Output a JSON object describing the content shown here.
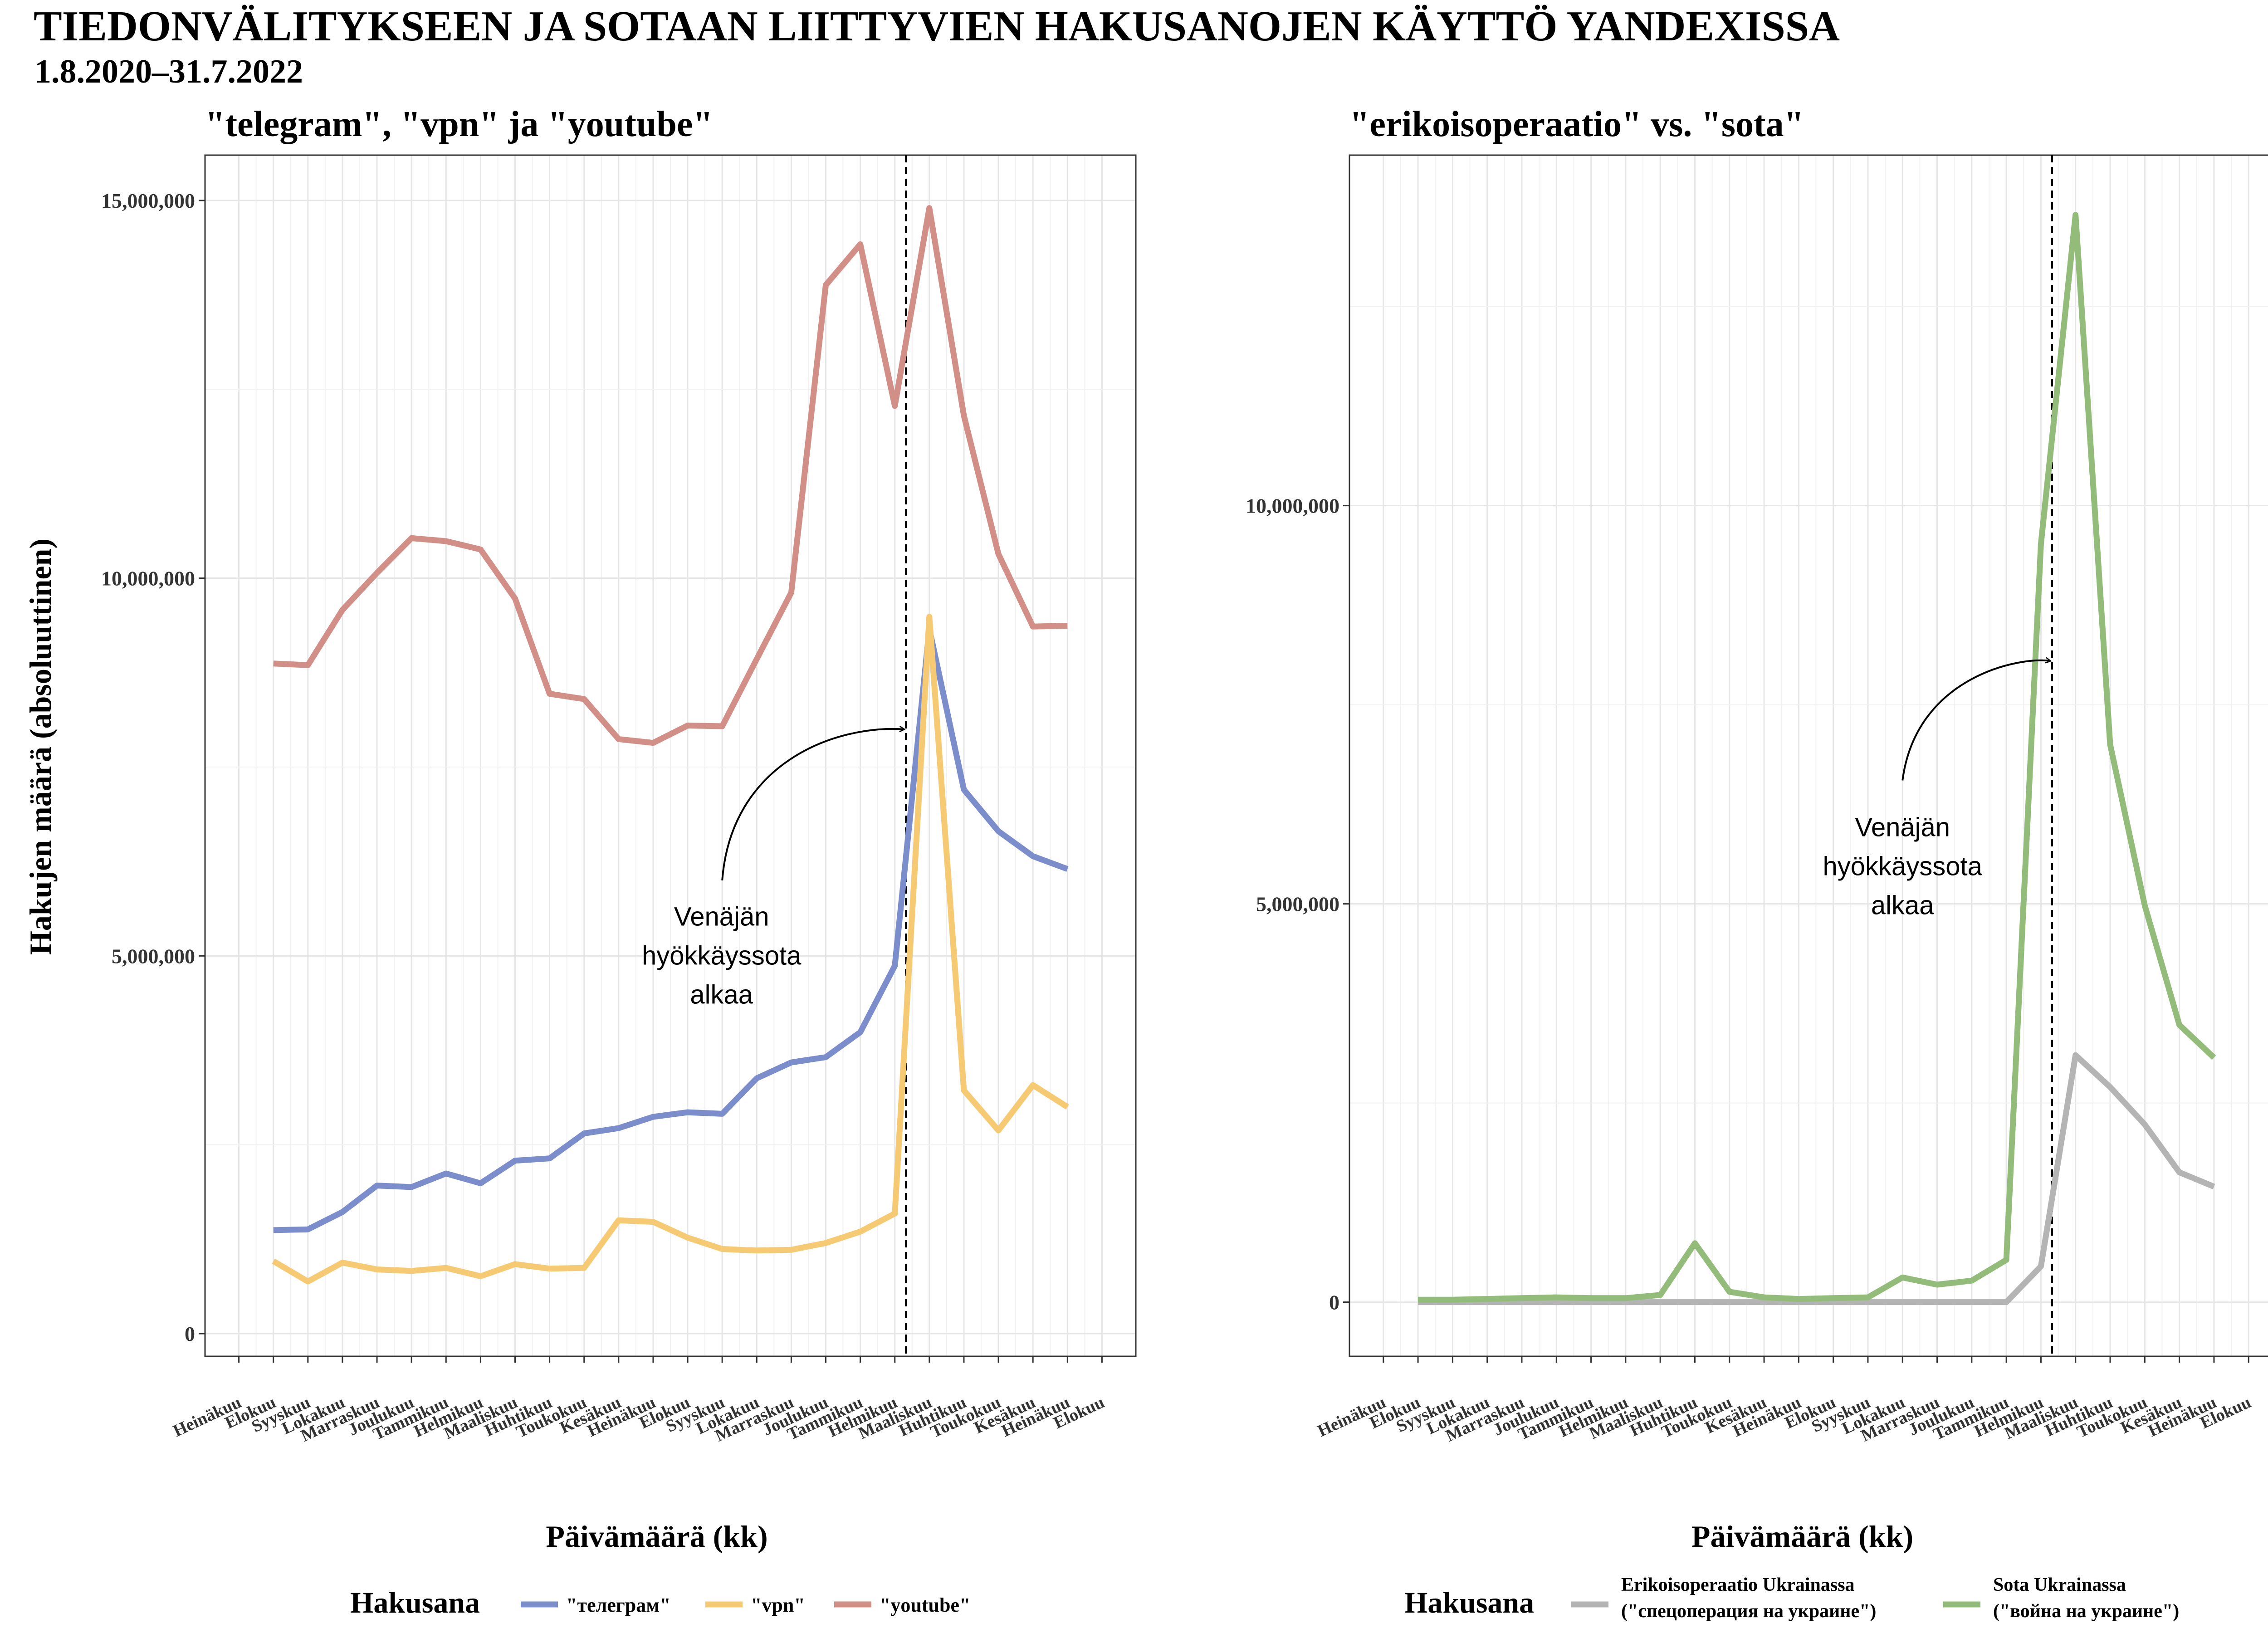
{
  "title": "TIEDONVÄLITYKSEEN JA SOTAAN LIITTYVIEN HAKUSANOJEN KÄYTTÖ YANDEXISSA",
  "subtitle": "1.8.2020–31.7.2022",
  "chart_data": [
    {
      "type": "line",
      "title": "\"telegram\", \"vpn\" ja \"youtube\"",
      "xlabel": "Päivämäärä (kk)",
      "ylabel": "Hakujen määrä (absoluuttinen)",
      "x_tick_labels": [
        "Heinäkuu",
        "Elokuu",
        "Syyskuu",
        "Lokakuu",
        "Marraskuu",
        "Joulukuu",
        "Tammikuu",
        "Helmikuu",
        "Maaliskuu",
        "Huhtikuu",
        "Toukokuu",
        "Kesäkuu",
        "Heinäkuu",
        "Elokuu",
        "Syyskuu",
        "Lokakuu",
        "Marraskuu",
        "Joulukuu",
        "Tammikuu",
        "Helmikuu",
        "Maaliskuu",
        "Huhtikuu",
        "Toukokuu",
        "Kesäkuu",
        "Heinäkuu",
        "Elokuu"
      ],
      "x": [
        "2020-08",
        "2020-09",
        "2020-10",
        "2020-11",
        "2020-12",
        "2021-01",
        "2021-02",
        "2021-03",
        "2021-04",
        "2021-05",
        "2021-06",
        "2021-07",
        "2021-08",
        "2021-09",
        "2021-10",
        "2021-11",
        "2021-12",
        "2022-01",
        "2022-02",
        "2022-03",
        "2022-04",
        "2022-05",
        "2022-06",
        "2022-07"
      ],
      "ylim": [
        -300000,
        15600000
      ],
      "y_ticks": [
        0,
        5000000,
        10000000,
        15000000
      ],
      "y_tick_labels": [
        "0",
        "5,000,000",
        "10,000,000",
        "15,000,000"
      ],
      "grid": true,
      "legend_title": "Hakusana",
      "legend_position": "bottom",
      "series": [
        {
          "name": "\"телеграм\"",
          "color": "#7b8ecb",
          "values": [
            1370000,
            1380000,
            1610000,
            1960000,
            1940000,
            2120000,
            1990000,
            2290000,
            2320000,
            2650000,
            2720000,
            2870000,
            2930000,
            2910000,
            3380000,
            3590000,
            3660000,
            3990000,
            4870000,
            9330000,
            7200000,
            6650000,
            6320000,
            6150000
          ]
        },
        {
          "name": "\"vpn\"",
          "color": "#f5ca72",
          "values": [
            960000,
            690000,
            940000,
            850000,
            830000,
            870000,
            760000,
            920000,
            860000,
            870000,
            1500000,
            1480000,
            1270000,
            1120000,
            1100000,
            1110000,
            1200000,
            1350000,
            1590000,
            9490000,
            3220000,
            2690000,
            3290000,
            3000000
          ]
        },
        {
          "name": "\"youtube\"",
          "color": "#d28f87",
          "values": [
            8870000,
            8850000,
            9580000,
            10070000,
            10530000,
            10490000,
            10380000,
            9730000,
            8470000,
            8400000,
            7870000,
            7820000,
            8050000,
            8040000,
            8930000,
            9810000,
            13880000,
            14420000,
            12280000,
            14900000,
            12150000,
            10320000,
            9360000,
            9370000
          ]
        }
      ],
      "event_line": {
        "x": "2022-02-24"
      },
      "annotation": {
        "lines": [
          "Venäjän",
          "hyökkäyssota",
          "alkaa"
        ]
      }
    },
    {
      "type": "line",
      "title": "\"erikoisoperaatio\" vs. \"sota\"",
      "xlabel": "Päivämäärä (kk)",
      "x_tick_labels": [
        "Heinäkuu",
        "Elokuu",
        "Syyskuu",
        "Lokakuu",
        "Marraskuu",
        "Joulukuu",
        "Tammikuu",
        "Helmikuu",
        "Maaliskuu",
        "Huhtikuu",
        "Toukokuu",
        "Kesäkuu",
        "Heinäkuu",
        "Elokuu",
        "Syyskuu",
        "Lokakuu",
        "Marraskuu",
        "Joulukuu",
        "Tammikuu",
        "Helmikuu",
        "Maaliskuu",
        "Huhtikuu",
        "Toukokuu",
        "Kesäkuu",
        "Heinäkuu",
        "Elokuu"
      ],
      "x": [
        "2020-08",
        "2020-09",
        "2020-10",
        "2020-11",
        "2020-12",
        "2021-01",
        "2021-02",
        "2021-03",
        "2021-04",
        "2021-05",
        "2021-06",
        "2021-07",
        "2021-08",
        "2021-09",
        "2021-10",
        "2021-11",
        "2021-12",
        "2022-01",
        "2022-02",
        "2022-03",
        "2022-04",
        "2022-05",
        "2022-06",
        "2022-07"
      ],
      "ylim": [
        -680000,
        14400000
      ],
      "y_ticks": [
        0,
        5000000,
        10000000
      ],
      "y_tick_labels": [
        "0",
        "5,000,000",
        "10,000,000"
      ],
      "grid": true,
      "legend_title": "Hakusana",
      "legend_position": "bottom",
      "series": [
        {
          "name": "Erikoisoperaatio Ukrainassa",
          "name_sub": "(\"спецоперация на украине\")",
          "color": "#b4b4b4",
          "values": [
            0,
            0,
            0,
            0,
            0,
            0,
            0,
            0,
            0,
            0,
            0,
            0,
            0,
            0,
            0,
            0,
            0,
            0,
            450000,
            3100000,
            2700000,
            2230000,
            1630000,
            1450000
          ]
        },
        {
          "name": "Sota Ukrainassa",
          "name_sub": "(\"война на украине\")",
          "color": "#93bc7b",
          "values": [
            30000,
            30000,
            40000,
            50000,
            60000,
            50000,
            50000,
            90000,
            740000,
            130000,
            60000,
            40000,
            50000,
            60000,
            310000,
            220000,
            270000,
            530000,
            9520000,
            13650000,
            7000000,
            4980000,
            3480000,
            3070000
          ]
        }
      ],
      "event_line": {
        "x": "2022-02-24"
      },
      "annotation": {
        "lines": [
          "Venäjän",
          "hyökkäyssota",
          "alkaa"
        ]
      }
    }
  ]
}
